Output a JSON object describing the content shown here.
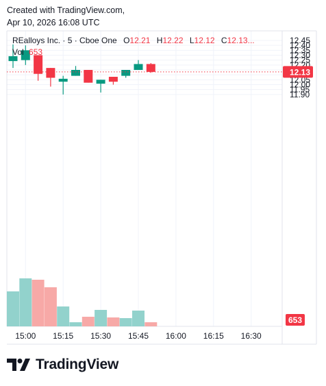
{
  "header": {
    "line1": "Created with TradingView.com,",
    "line2": "Apr 10, 2026 16:08 UTC"
  },
  "legend": {
    "symbol": "REalloys Inc. · 5 · Cboe One",
    "o_label": "O",
    "o_value": "12.21",
    "h_label": "H",
    "h_value": "12.22",
    "l_label": "L",
    "l_value": "12.12",
    "c_label": "C",
    "c_value": "12.13...",
    "vol_label": "Vol",
    "vol_value": "653"
  },
  "brand": {
    "name": "TradingView",
    "logo_icon": "tradingview-logo-icon"
  },
  "colors": {
    "up": "#089981",
    "down": "#f23645",
    "vol_up": "#92d2cc",
    "vol_down": "#f7a9a7",
    "text": "#131722",
    "grid": "#f0f3fa",
    "price_line": "#f23645"
  },
  "chart_data": {
    "type": "candlestick",
    "interval": "5",
    "x_tick_labels": [
      "15:00",
      "15:15",
      "15:30",
      "15:45",
      "16:00",
      "16:15",
      "16:30"
    ],
    "y_tick_labels": [
      "12.45",
      "12.40",
      "12.35",
      "12.30",
      "12.25",
      "12.20",
      "12.15",
      "12.10",
      "12.05",
      "12.00",
      "11.95",
      "11.90"
    ],
    "ylim": [
      11.88,
      12.47
    ],
    "last_price": "12.13",
    "last_volume": "653",
    "grid": true,
    "candles": [
      {
        "t": "14:55",
        "o": 12.24,
        "h": 12.41,
        "l": 12.17,
        "c": 12.29
      },
      {
        "t": "15:00",
        "o": 12.25,
        "h": 12.4,
        "l": 12.2,
        "c": 12.35
      },
      {
        "t": "15:05",
        "o": 12.3,
        "h": 12.3,
        "l": 12.04,
        "c": 12.11
      },
      {
        "t": "15:10",
        "o": 12.17,
        "h": 12.17,
        "l": 11.98,
        "c": 12.07
      },
      {
        "t": "15:15",
        "o": 12.03,
        "h": 12.09,
        "l": 11.9,
        "c": 12.06
      },
      {
        "t": "15:20",
        "o": 12.09,
        "h": 12.19,
        "l": 12.09,
        "c": 12.15
      },
      {
        "t": "15:25",
        "o": 12.15,
        "h": 12.15,
        "l": 12.02,
        "c": 12.02
      },
      {
        "t": "15:30",
        "o": 12.01,
        "h": 12.05,
        "l": 11.92,
        "c": 12.05
      },
      {
        "t": "15:35",
        "o": 12.08,
        "h": 12.08,
        "l": 12.0,
        "c": 12.03
      },
      {
        "t": "15:40",
        "o": 12.09,
        "h": 12.15,
        "l": 12.07,
        "c": 12.15
      },
      {
        "t": "15:45",
        "o": 12.15,
        "h": 12.25,
        "l": 12.15,
        "c": 12.21
      },
      {
        "t": "15:50",
        "o": 12.21,
        "h": 12.22,
        "l": 12.12,
        "c": 12.13
      }
    ],
    "volume_fraction": [
      0.51,
      0.7,
      0.68,
      0.57,
      0.29,
      0.06,
      0.14,
      0.24,
      0.13,
      0.12,
      0.23,
      0.06
    ]
  }
}
